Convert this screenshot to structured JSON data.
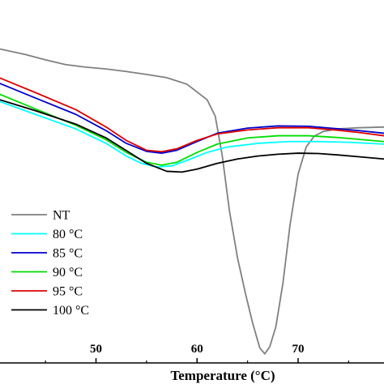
{
  "chart_data": {
    "type": "line",
    "title": "",
    "xlabel": "Temperature (°C)",
    "ylabel": "",
    "xlim": [
      40.5,
      78.5
    ],
    "ylim": [
      0,
      100
    ],
    "x_ticks": [
      50,
      60,
      70
    ],
    "grid": false,
    "legend_placement": "bottom-left",
    "series": [
      {
        "name": "NT",
        "color": "#808080",
        "x": [
          40.5,
          43,
          45,
          47,
          49,
          51,
          53,
          55,
          57,
          59,
          61,
          61.8,
          62.5,
          63.2,
          64,
          64.8,
          65.5,
          66.2,
          66.7,
          67.2,
          67.8,
          68.5,
          69.2,
          70,
          70.8,
          71.6,
          72.5,
          74,
          76,
          78.5
        ],
        "y": [
          86.5,
          85,
          83.5,
          82.2,
          81.5,
          81,
          80.3,
          79.5,
          78.6,
          76.8,
          72.5,
          68,
          57,
          42,
          29,
          19,
          11,
          4.2,
          2.5,
          4.5,
          10,
          22,
          38,
          52,
          59.5,
          62.5,
          63.8,
          64.5,
          64.8,
          65
        ]
      },
      {
        "name": "80 °C",
        "color": "#00ffff",
        "x": [
          40.5,
          44,
          48,
          51,
          53,
          54.5,
          56,
          57.5,
          59,
          61,
          63,
          66,
          69,
          72,
          75,
          78.5
        ],
        "y": [
          72,
          68.5,
          64.5,
          60.5,
          57,
          55,
          54,
          54.3,
          55.8,
          58,
          59.5,
          60.5,
          61,
          61,
          60.8,
          60.3
        ]
      },
      {
        "name": "85 °C",
        "color": "#0000cc",
        "x": [
          40.5,
          44,
          48,
          51,
          53,
          55,
          56.5,
          58,
          60,
          62,
          65,
          68,
          71,
          74,
          76,
          78.5
        ],
        "y": [
          77,
          73,
          68.5,
          64,
          60.5,
          58.3,
          57.8,
          58.6,
          61,
          63.3,
          64.7,
          65.3,
          65.2,
          64.5,
          64,
          63.3
        ]
      },
      {
        "name": "90 °C",
        "color": "#00dd00",
        "x": [
          40.5,
          44,
          48,
          51,
          53,
          55,
          56.5,
          58,
          60,
          62,
          65,
          68,
          71,
          74,
          76,
          78.5
        ],
        "y": [
          74,
          70,
          65.5,
          61.5,
          58,
          55.3,
          54.5,
          55.3,
          58,
          60.3,
          62,
          62.6,
          62.6,
          62.1,
          61.6,
          61
        ]
      },
      {
        "name": "95 °C",
        "color": "#dd0000",
        "x": [
          40.5,
          44,
          48,
          51,
          53,
          55,
          56.5,
          58,
          60,
          62,
          65,
          68,
          71,
          74,
          76,
          78.5
        ],
        "y": [
          78.5,
          74.5,
          69.8,
          65,
          61.3,
          58.6,
          58.2,
          59,
          61.3,
          63.1,
          64.2,
          64.8,
          64.8,
          64.1,
          63.5,
          62.6
        ]
      },
      {
        "name": "100 °C",
        "color": "#000000",
        "x": [
          40.5,
          44,
          48,
          51,
          53,
          55,
          57,
          58.5,
          60,
          62,
          64,
          66,
          68,
          70,
          72,
          74,
          76,
          78.5
        ],
        "y": [
          72.5,
          69.5,
          65.8,
          62,
          58.5,
          55,
          52.8,
          52.6,
          53.4,
          55,
          56.2,
          57,
          57.5,
          57.8,
          57.7,
          57.3,
          56.8,
          56.2
        ]
      }
    ]
  }
}
